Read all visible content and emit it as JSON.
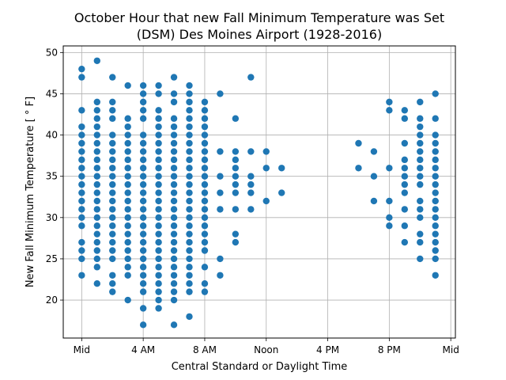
{
  "chart_data": {
    "type": "scatter",
    "title": "October Hour that new Fall Minimum Temperature was Set",
    "subtitle": "(DSM) Des Moines Airport (1928-2016)",
    "xlabel": "Central Standard or Daylight Time",
    "ylabel": "New Fall Minimum Temperature [$^\\circ$F]",
    "ylabel_display": "New Fall Minimum Temperature [ ° F]",
    "xlim": [
      -1.2,
      24.3
    ],
    "ylim": [
      15.4,
      50.8
    ],
    "grid": true,
    "marker_color": "#1f77b4",
    "x_ticks": [
      {
        "value": 0,
        "label": "Mid"
      },
      {
        "value": 4,
        "label": "4 AM"
      },
      {
        "value": 8,
        "label": "8 AM"
      },
      {
        "value": 12,
        "label": "Noon"
      },
      {
        "value": 16,
        "label": "4 PM"
      },
      {
        "value": 20,
        "label": "8 PM"
      },
      {
        "value": 24,
        "label": "Mid"
      }
    ],
    "y_ticks": [
      20,
      25,
      30,
      35,
      40,
      45,
      50
    ],
    "points_by_hour": [
      {
        "x": 0,
        "y": [
          23,
          25,
          26,
          27,
          29,
          30,
          31,
          32,
          33,
          34,
          35,
          36,
          37,
          38,
          39,
          40,
          41,
          43,
          47,
          48
        ]
      },
      {
        "x": 1,
        "y": [
          22,
          24,
          25,
          26,
          27,
          28,
          29,
          30,
          31,
          32,
          33,
          34,
          35,
          36,
          37,
          38,
          39,
          40,
          41,
          42,
          43,
          44,
          49
        ]
      },
      {
        "x": 2,
        "y": [
          21,
          22,
          23,
          25,
          26,
          27,
          28,
          29,
          30,
          31,
          32,
          33,
          34,
          35,
          36,
          37,
          38,
          39,
          40,
          42,
          43,
          44,
          47
        ]
      },
      {
        "x": 3,
        "y": [
          20,
          23,
          24,
          25,
          26,
          27,
          28,
          29,
          30,
          31,
          32,
          33,
          34,
          35,
          36,
          37,
          38,
          39,
          40,
          41,
          42,
          46
        ]
      },
      {
        "x": 4,
        "y": [
          17,
          19,
          21,
          22,
          23,
          24,
          25,
          26,
          27,
          28,
          29,
          30,
          31,
          32,
          33,
          34,
          35,
          36,
          37,
          38,
          39,
          40,
          42,
          43,
          44,
          45,
          46
        ]
      },
      {
        "x": 5,
        "y": [
          19,
          20,
          21,
          22,
          23,
          24,
          25,
          26,
          27,
          28,
          29,
          30,
          31,
          32,
          33,
          34,
          35,
          36,
          37,
          38,
          39,
          40,
          41,
          42,
          43,
          45,
          46
        ]
      },
      {
        "x": 6,
        "y": [
          17,
          20,
          21,
          22,
          23,
          24,
          25,
          26,
          27,
          28,
          29,
          30,
          31,
          32,
          33,
          34,
          35,
          36,
          37,
          38,
          39,
          40,
          41,
          42,
          44,
          45,
          47
        ]
      },
      {
        "x": 7,
        "y": [
          18,
          21,
          22,
          23,
          24,
          25,
          26,
          27,
          28,
          29,
          30,
          31,
          32,
          33,
          34,
          35,
          36,
          37,
          38,
          39,
          40,
          41,
          42,
          43,
          44,
          45,
          46
        ]
      },
      {
        "x": 8,
        "y": [
          21,
          22,
          24,
          26,
          27,
          28,
          29,
          30,
          31,
          32,
          33,
          34,
          35,
          36,
          37,
          38,
          39,
          40,
          41,
          42,
          43,
          44
        ]
      },
      {
        "x": 9,
        "y": [
          23,
          25,
          31,
          33,
          35,
          38,
          45
        ]
      },
      {
        "x": 10,
        "y": [
          27,
          28,
          31,
          33,
          34,
          35,
          36,
          37,
          38,
          42
        ]
      },
      {
        "x": 11,
        "y": [
          31,
          33,
          34,
          35,
          38,
          47
        ]
      },
      {
        "x": 12,
        "y": [
          32,
          36,
          38
        ]
      },
      {
        "x": 13,
        "y": [
          33,
          36
        ]
      },
      {
        "x": 18,
        "y": [
          36,
          39
        ]
      },
      {
        "x": 19,
        "y": [
          32,
          35,
          38
        ]
      },
      {
        "x": 20,
        "y": [
          29,
          30,
          32,
          36,
          43,
          44
        ]
      },
      {
        "x": 21,
        "y": [
          27,
          29,
          31,
          33,
          34,
          35,
          36,
          37,
          39,
          42,
          43
        ]
      },
      {
        "x": 22,
        "y": [
          25,
          27,
          28,
          30,
          31,
          32,
          34,
          35,
          36,
          37,
          38,
          39,
          40,
          41,
          42,
          44
        ]
      },
      {
        "x": 23,
        "y": [
          23,
          25,
          26,
          27,
          28,
          29,
          30,
          31,
          32,
          33,
          34,
          35,
          36,
          37,
          38,
          39,
          40,
          42,
          45
        ]
      }
    ]
  }
}
